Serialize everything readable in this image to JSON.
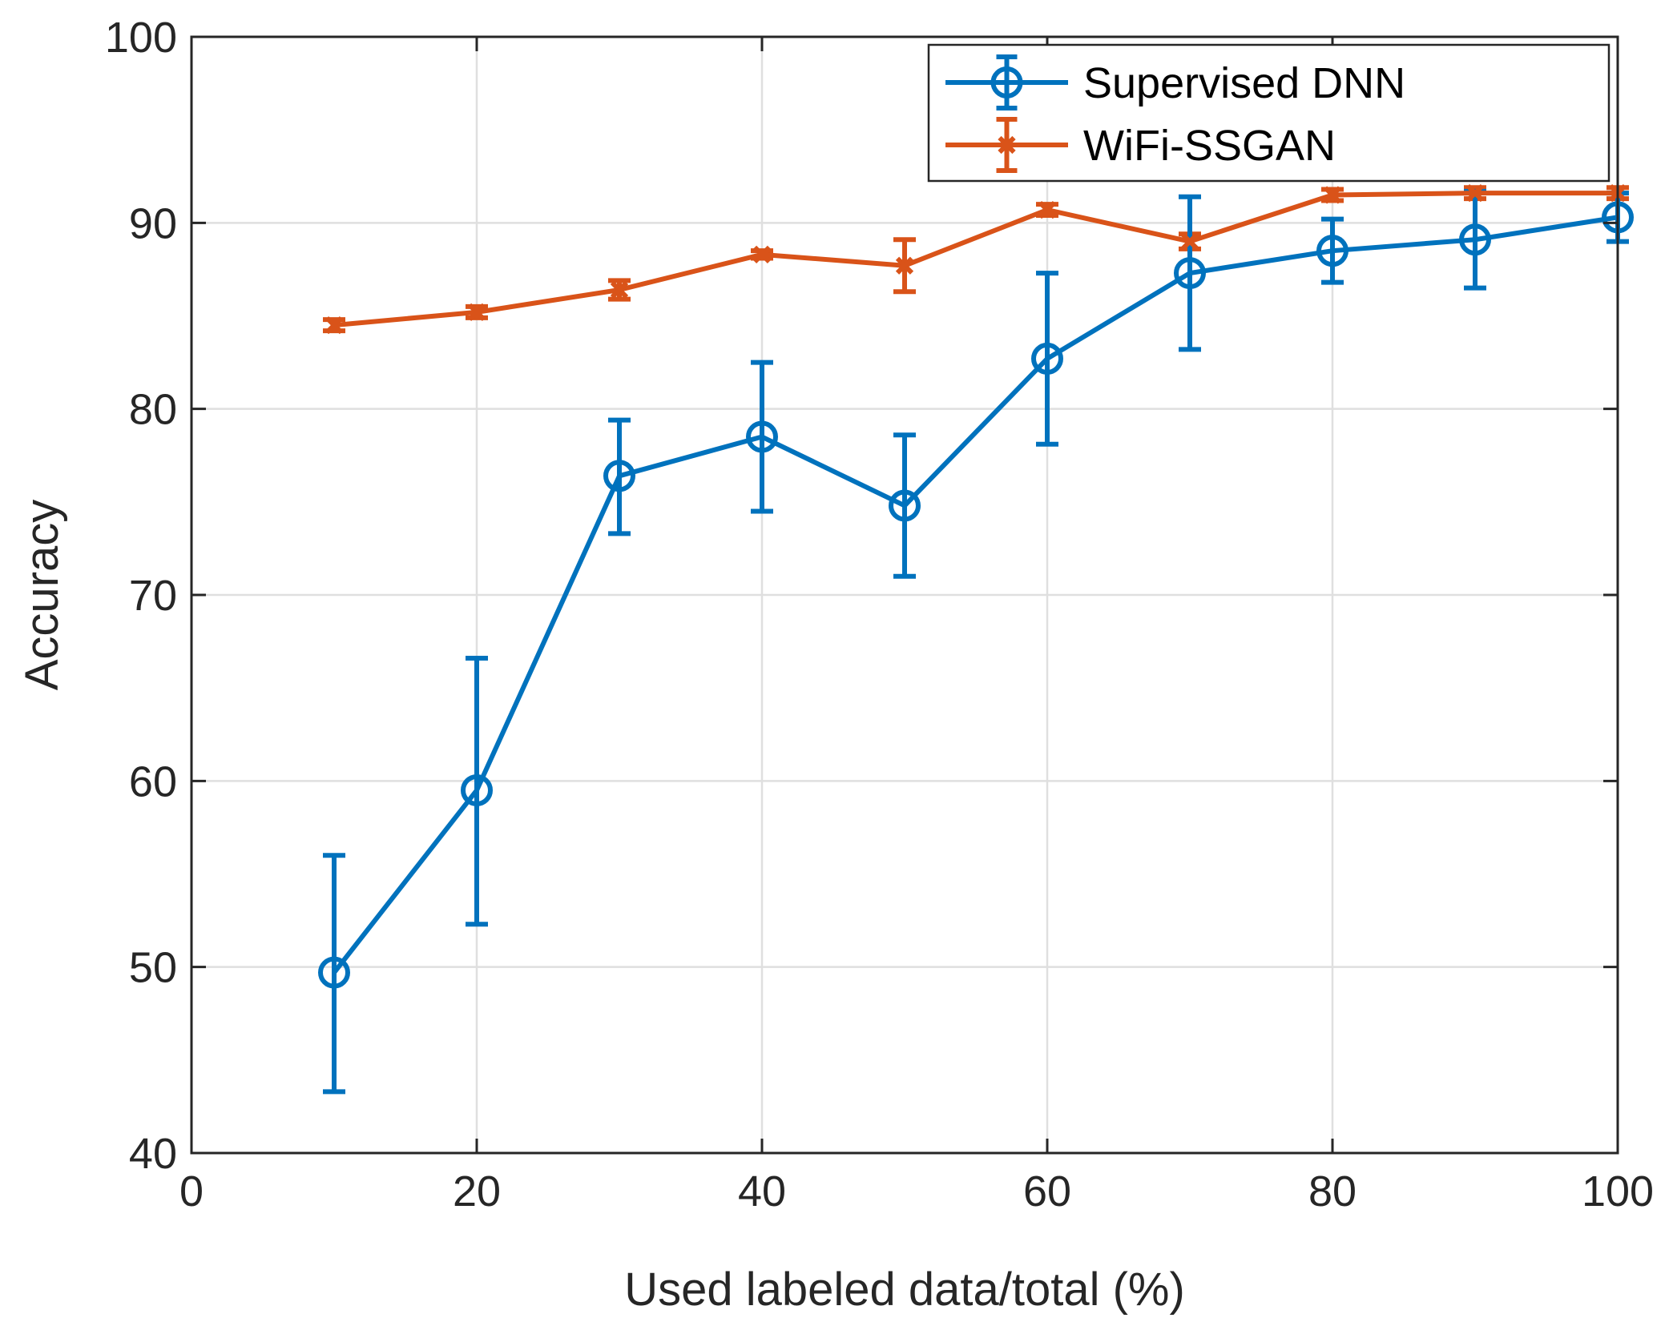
{
  "chart_data": {
    "type": "line",
    "title": "",
    "xlabel": "Used labeled data/total (%)",
    "ylabel": "Accuracy",
    "xlim": [
      0,
      100
    ],
    "ylim": [
      40,
      100
    ],
    "xticks": [
      0,
      20,
      40,
      60,
      80,
      100
    ],
    "yticks": [
      40,
      50,
      60,
      70,
      80,
      90,
      100
    ],
    "grid": true,
    "legend_position": "top-right",
    "x": [
      10,
      20,
      30,
      40,
      50,
      60,
      70,
      80,
      90,
      100
    ],
    "series": [
      {
        "name": "Supervised DNN",
        "color": "#0072BD",
        "marker": "circle",
        "values": [
          49.7,
          59.5,
          76.4,
          78.5,
          74.8,
          82.7,
          87.3,
          88.5,
          89.1,
          90.3
        ],
        "err_low": [
          43.3,
          52.3,
          73.3,
          74.5,
          71.0,
          78.1,
          83.2,
          86.8,
          86.5,
          89.0
        ],
        "err_high": [
          56.0,
          66.6,
          79.4,
          82.5,
          78.6,
          87.3,
          91.4,
          90.2,
          91.7,
          91.6
        ]
      },
      {
        "name": "WiFi-SSGAN",
        "color": "#D95319",
        "marker": "x",
        "values": [
          84.5,
          85.2,
          86.4,
          88.3,
          87.7,
          90.7,
          89.0,
          91.5,
          91.6,
          91.6
        ],
        "err_low": [
          84.2,
          84.9,
          85.9,
          88.1,
          86.3,
          90.4,
          88.6,
          91.2,
          91.3,
          91.3
        ],
        "err_high": [
          84.8,
          85.5,
          86.9,
          88.5,
          89.1,
          91.0,
          89.4,
          91.8,
          91.9,
          91.9
        ]
      }
    ]
  }
}
